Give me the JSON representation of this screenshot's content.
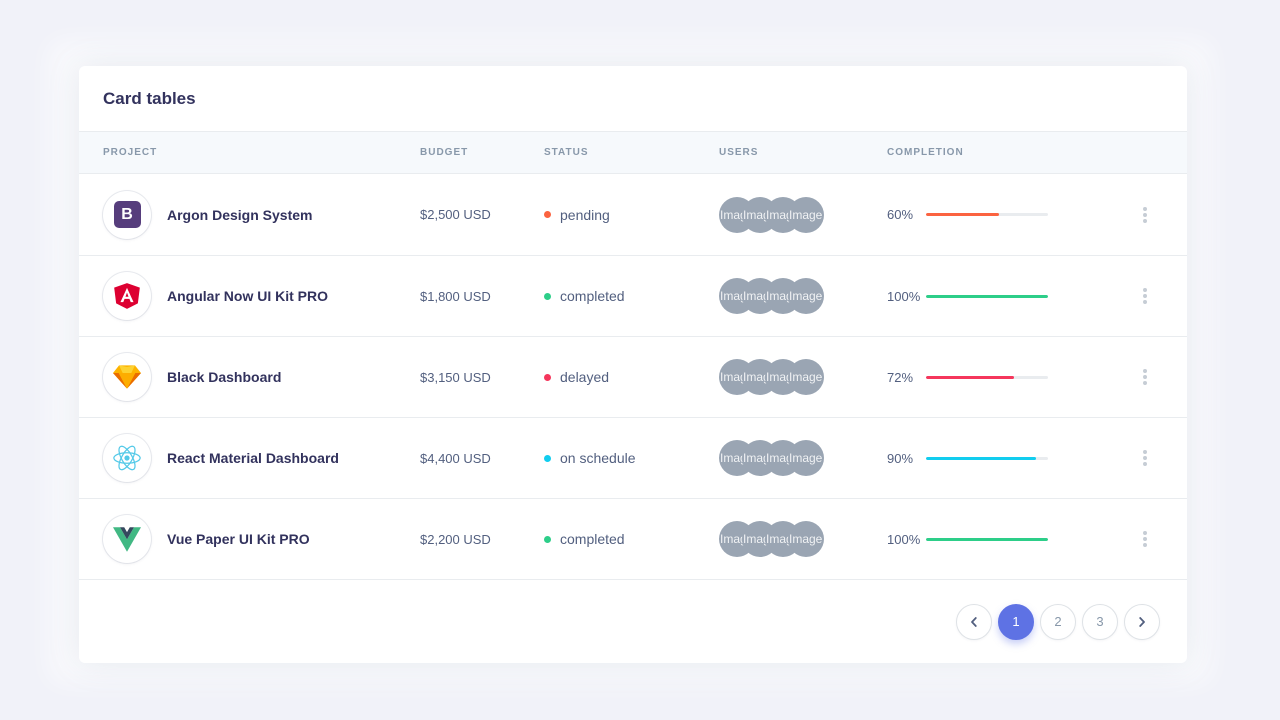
{
  "page": {
    "background": "#f1f2f9",
    "accent": "#5e72e4"
  },
  "card": {
    "title": "Card tables",
    "header": {
      "project": "Project",
      "budget": "Budget",
      "status": "Status",
      "users": "Users",
      "completion": "Completion"
    },
    "avatar_alt": "Image placeholder",
    "rows": [
      {
        "project": "Argon Design System",
        "icon": "bootstrap-logo",
        "icon_letter": "B",
        "budget": "$2,500 USD",
        "status": "pending",
        "status_color": "#fb6340",
        "completion_label": "60%",
        "completion_value": 60,
        "completion_color": "#fb6340"
      },
      {
        "project": "Angular Now UI Kit PRO",
        "icon": "angular-logo",
        "budget": "$1,800 USD",
        "status": "completed",
        "status_color": "#2dce89",
        "completion_label": "100%",
        "completion_value": 100,
        "completion_color": "#2dce89"
      },
      {
        "project": "Black Dashboard",
        "icon": "sketch-logo",
        "budget": "$3,150 USD",
        "status": "delayed",
        "status_color": "#f5365c",
        "completion_label": "72%",
        "completion_value": 72,
        "completion_color": "#f5365c"
      },
      {
        "project": "React Material Dashboard",
        "icon": "react-logo",
        "budget": "$4,400 USD",
        "status": "on schedule",
        "status_color": "#11cdef",
        "completion_label": "90%",
        "completion_value": 90,
        "completion_color": "#11cdef"
      },
      {
        "project": "Vue Paper UI Kit PRO",
        "icon": "vue-logo",
        "budget": "$2,200 USD",
        "status": "completed",
        "status_color": "#2dce89",
        "completion_label": "100%",
        "completion_value": 100,
        "completion_color": "#2dce89"
      }
    ],
    "pagination": {
      "pages": [
        "1",
        "2",
        "3"
      ],
      "active_page": "1"
    }
  }
}
